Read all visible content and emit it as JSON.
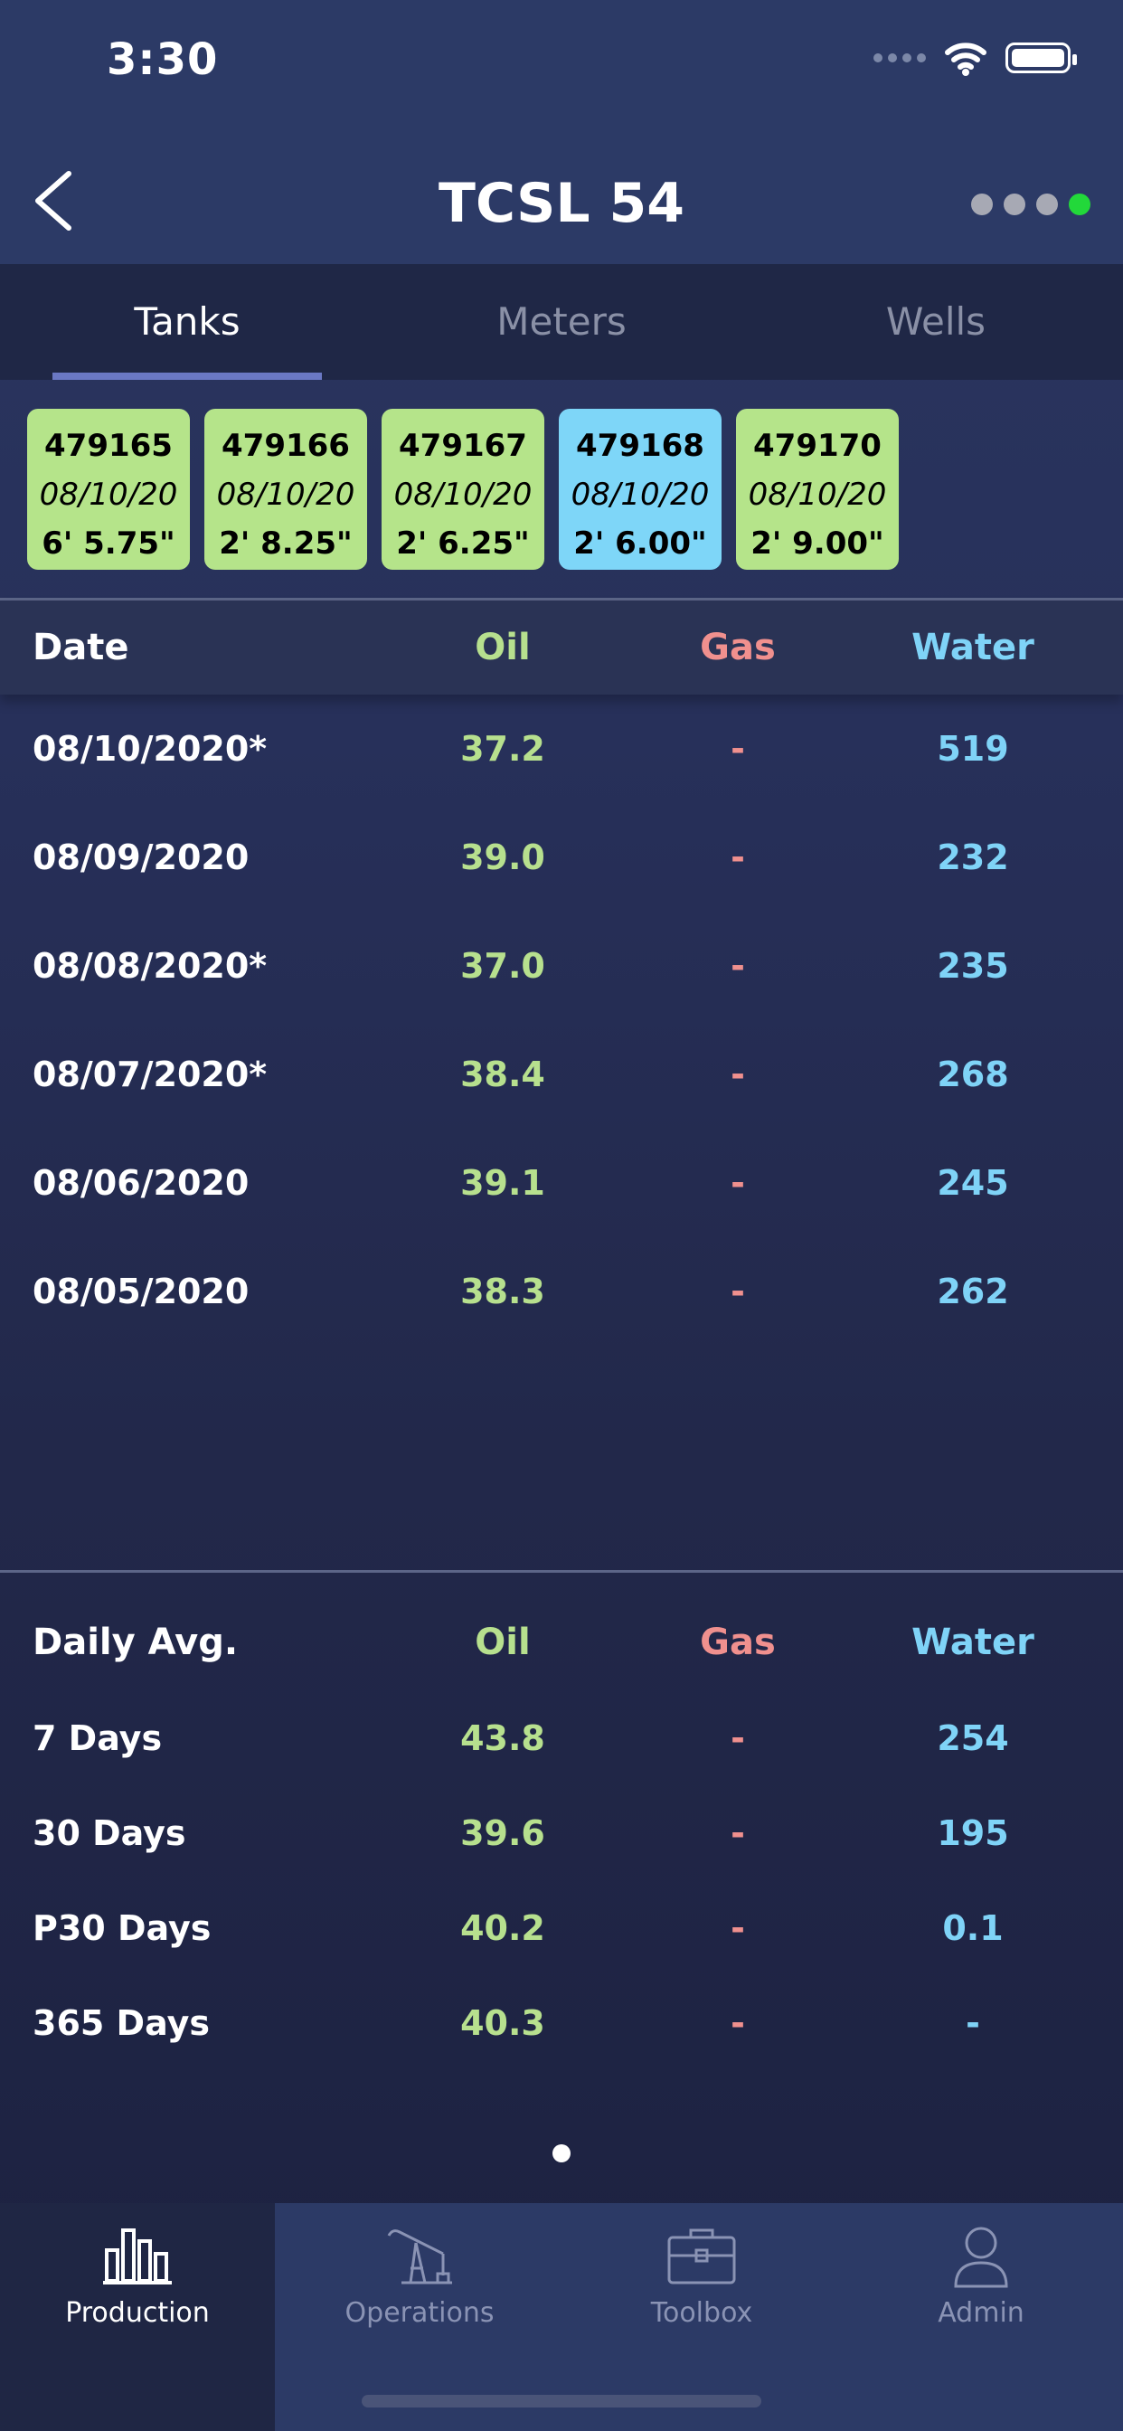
{
  "status_bar": {
    "time": "3:30"
  },
  "nav": {
    "title": "TCSL 54"
  },
  "nav_dot_colors": [
    "#a7a9b4",
    "#a7a9b4",
    "#a7a9b4",
    "#22d83a"
  ],
  "tabs": [
    {
      "label": "Tanks",
      "active": true
    },
    {
      "label": "Meters",
      "active": false
    },
    {
      "label": "Wells",
      "active": false
    }
  ],
  "tanks": [
    {
      "number": "479165",
      "date": "08/10/20",
      "level": "6' 5.75\"",
      "color": "#b5e48a"
    },
    {
      "number": "479166",
      "date": "08/10/20",
      "level": "2' 8.25\"",
      "color": "#b5e48a"
    },
    {
      "number": "479167",
      "date": "08/10/20",
      "level": "2' 6.25\"",
      "color": "#b5e48a"
    },
    {
      "number": "479168",
      "date": "08/10/20",
      "level": "2' 6.00\"",
      "color": "#7ed6f8"
    },
    {
      "number": "479170",
      "date": "08/10/20",
      "level": "2' 9.00\"",
      "color": "#b5e48a"
    }
  ],
  "production": {
    "headers": {
      "date": "Date",
      "oil": "Oil",
      "gas": "Gas",
      "water": "Water"
    },
    "rows": [
      {
        "date": "08/10/2020*",
        "oil": "37.2",
        "gas": "-",
        "water": "519"
      },
      {
        "date": "08/09/2020",
        "oil": "39.0",
        "gas": "-",
        "water": "232"
      },
      {
        "date": "08/08/2020*",
        "oil": "37.0",
        "gas": "-",
        "water": "235"
      },
      {
        "date": "08/07/2020*",
        "oil": "38.4",
        "gas": "-",
        "water": "268"
      },
      {
        "date": "08/06/2020",
        "oil": "39.1",
        "gas": "-",
        "water": "245"
      },
      {
        "date": "08/05/2020",
        "oil": "38.3",
        "gas": "-",
        "water": "262"
      }
    ]
  },
  "averages": {
    "headers": {
      "label": "Daily Avg.",
      "oil": "Oil",
      "gas": "Gas",
      "water": "Water"
    },
    "rows": [
      {
        "label": "7 Days",
        "oil": "43.8",
        "gas": "-",
        "water": "254"
      },
      {
        "label": "30 Days",
        "oil": "39.6",
        "gas": "-",
        "water": "195"
      },
      {
        "label": "P30 Days",
        "oil": "40.2",
        "gas": "-",
        "water": "0.1"
      },
      {
        "label": "365 Days",
        "oil": "40.3",
        "gas": "-",
        "water": "-"
      }
    ]
  },
  "colors": {
    "oil": "#b7e08e",
    "gas": "#f0908e",
    "water": "#7fd3f7"
  },
  "bottom_tabs": [
    {
      "label": "Production",
      "icon": "bar-chart-icon",
      "active": true
    },
    {
      "label": "Operations",
      "icon": "pumpjack-icon",
      "active": false
    },
    {
      "label": "Toolbox",
      "icon": "toolbox-icon",
      "active": false
    },
    {
      "label": "Admin",
      "icon": "person-icon",
      "active": false
    }
  ]
}
